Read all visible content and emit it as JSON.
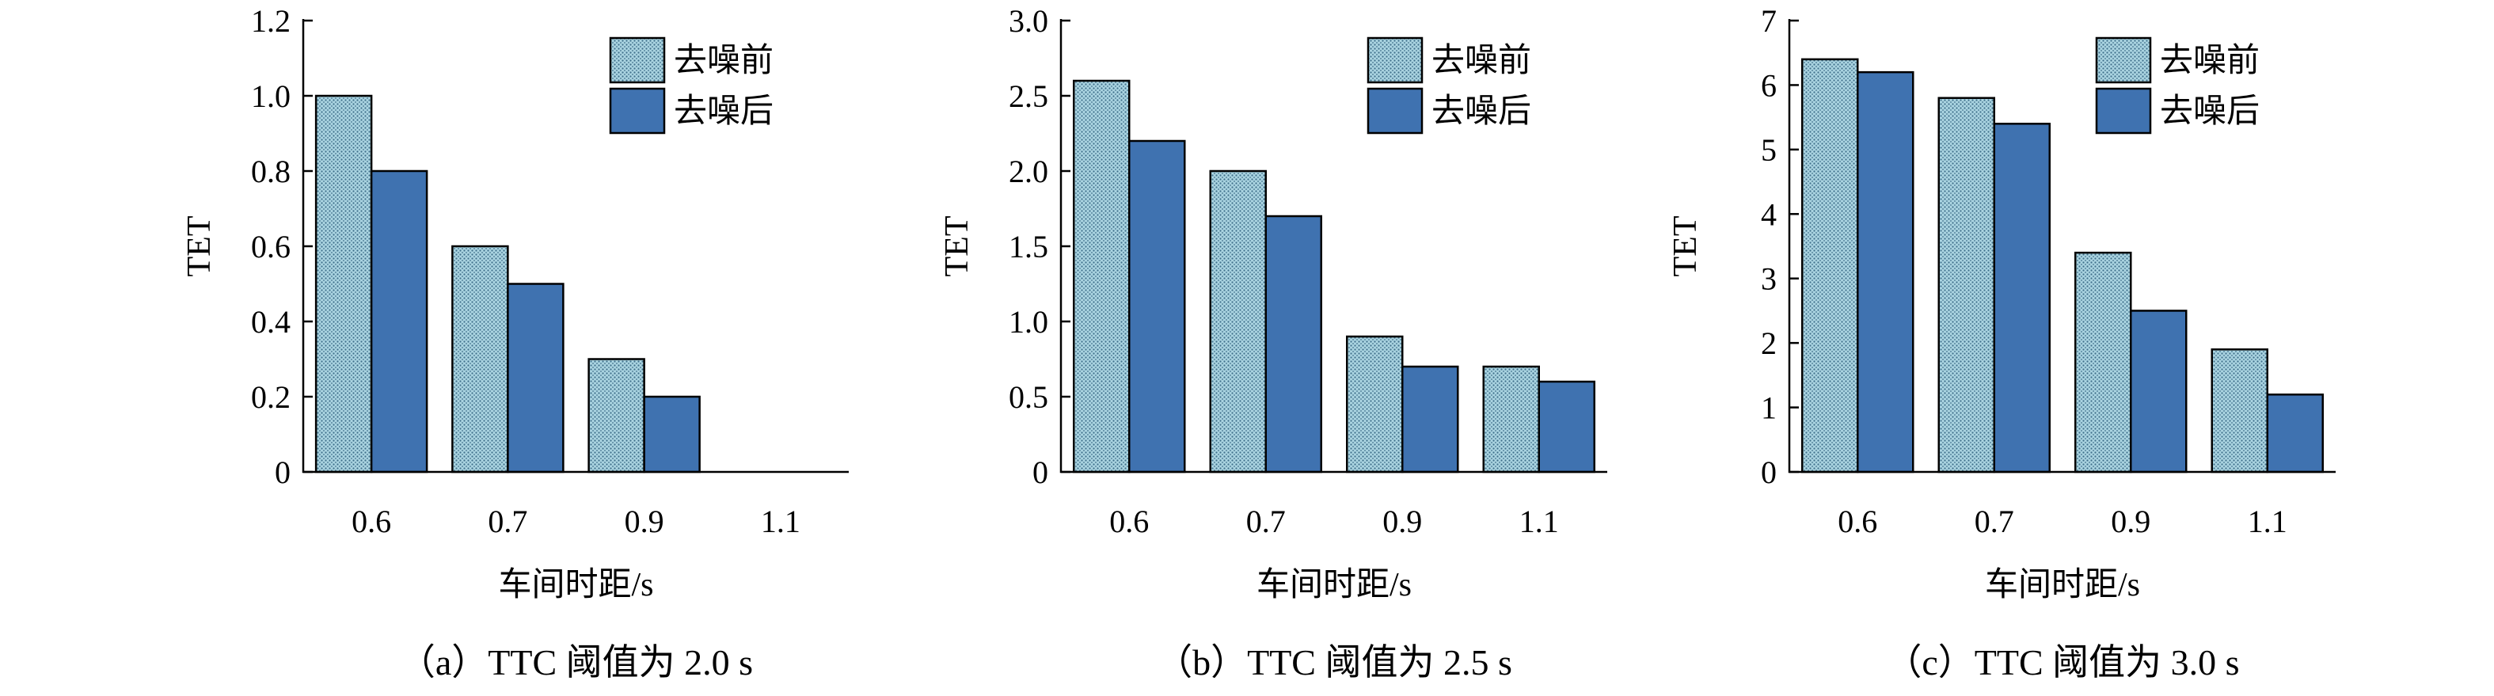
{
  "chart_data": [
    {
      "type": "bar",
      "caption": "（a）TTC 阈值为 2.0 s",
      "categories": [
        "0.6",
        "0.7",
        "0.9",
        "1.1"
      ],
      "series": [
        {
          "name": "去噪前",
          "values": [
            1.0,
            0.6,
            0.3,
            0
          ]
        },
        {
          "name": "去噪后",
          "values": [
            0.8,
            0.5,
            0.2,
            0
          ]
        }
      ],
      "ylim": [
        0,
        1.2
      ],
      "yticks": [
        "0",
        "0.2",
        "0.4",
        "0.6",
        "0.8",
        "1.0",
        "1.2"
      ],
      "xlabel": "车间时距/s",
      "ylabel": "TET",
      "legend": "top-right",
      "grid": false
    },
    {
      "type": "bar",
      "caption": "（b）TTC 阈值为 2.5 s",
      "categories": [
        "0.6",
        "0.7",
        "0.9",
        "1.1"
      ],
      "series": [
        {
          "name": "去噪前",
          "values": [
            2.6,
            2.0,
            0.9,
            0.7
          ]
        },
        {
          "name": "去噪后",
          "values": [
            2.2,
            1.7,
            0.7,
            0.6
          ]
        }
      ],
      "ylim": [
        0,
        3.0
      ],
      "yticks": [
        "0",
        "0.5",
        "1.0",
        "1.5",
        "2.0",
        "2.5",
        "3.0"
      ],
      "xlabel": "车间时距/s",
      "ylabel": "TET",
      "legend": "top-right",
      "grid": false
    },
    {
      "type": "bar",
      "caption": "（c）TTC 阈值为 3.0 s",
      "categories": [
        "0.6",
        "0.7",
        "0.9",
        "1.1"
      ],
      "series": [
        {
          "name": "去噪前",
          "values": [
            6.4,
            5.8,
            3.4,
            1.9
          ]
        },
        {
          "name": "去噪后",
          "values": [
            6.2,
            5.4,
            2.5,
            1.2
          ]
        }
      ],
      "ylim": [
        0,
        7
      ],
      "yticks": [
        "0",
        "1",
        "2",
        "3",
        "4",
        "5",
        "6",
        "7"
      ],
      "xlabel": "车间时距/s",
      "ylabel": "TET",
      "legend": "top-right",
      "grid": false
    }
  ],
  "colors": {
    "before_fill": "#a9d3e0",
    "before_dots": "#3f6f8a",
    "after_fill": "#3f72b0",
    "axis": "#000000"
  }
}
